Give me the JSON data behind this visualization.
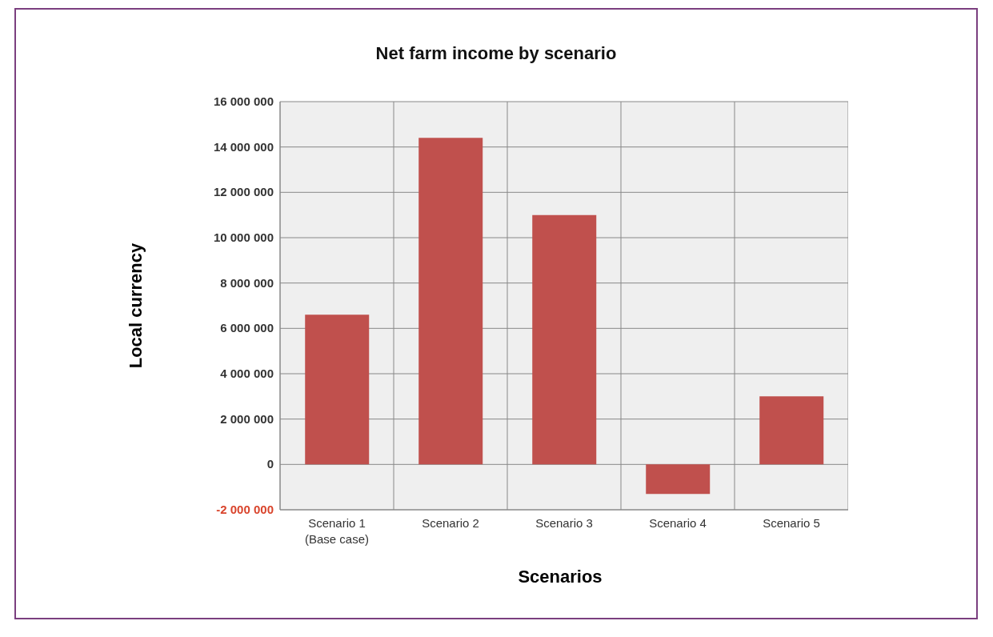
{
  "chart_data": {
    "type": "bar",
    "title": "Net farm income by scenario",
    "xlabel": "Scenarios",
    "ylabel": "Local currency",
    "categories": [
      "Scenario 1\n(Base case)",
      "Scenario 2",
      "Scenario 3",
      "Scenario 4",
      "Scenario 5"
    ],
    "values": [
      6600000,
      14400000,
      11000000,
      -1300000,
      3000000
    ],
    "color": "#c0504d",
    "ylim": [
      -2000000,
      16000000
    ],
    "yticks": [
      {
        "value": -2000000,
        "label": "-2 000 000"
      },
      {
        "value": 0,
        "label": "0"
      },
      {
        "value": 2000000,
        "label": "2 000 000"
      },
      {
        "value": 4000000,
        "label": "4 000 000"
      },
      {
        "value": 6000000,
        "label": "6 000 000"
      },
      {
        "value": 8000000,
        "label": "8 000 000"
      },
      {
        "value": 10000000,
        "label": "10 000 000"
      },
      {
        "value": 12000000,
        "label": "12 000 000"
      },
      {
        "value": 14000000,
        "label": "14 000 000"
      },
      {
        "value": 16000000,
        "label": "16 000 000"
      }
    ],
    "grid": true
  }
}
